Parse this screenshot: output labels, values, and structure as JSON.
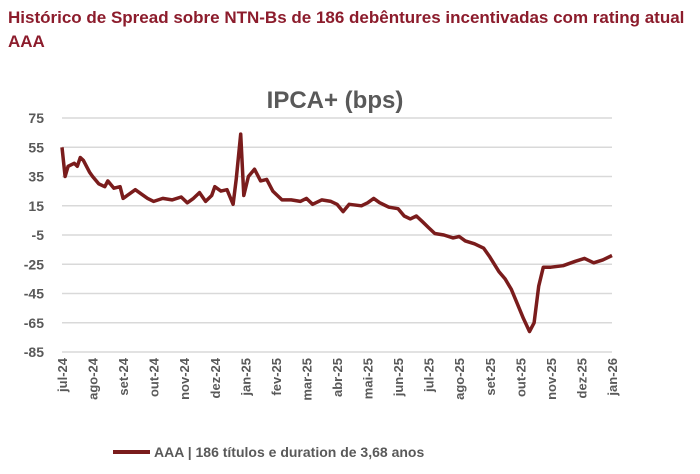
{
  "header": {
    "title": "Histórico de Spread sobre NTN-Bs  de 186 debêntures incentivadas com rating atual AAA"
  },
  "chart_data": {
    "type": "line",
    "title": "IPCA+ (bps)",
    "xlabel": "",
    "ylabel": "",
    "ylim": [
      -85,
      75
    ],
    "yticks": [
      75,
      55,
      35,
      15,
      -5,
      -25,
      -45,
      -65,
      -85
    ],
    "categories": [
      "jul-24",
      "ago-24",
      "set-24",
      "out-24",
      "nov-24",
      "dez-24",
      "jan-25",
      "fev-25",
      "mar-25",
      "abr-25",
      "mai-25",
      "jun-25",
      "jul-25",
      "ago-25",
      "set-25",
      "out-25",
      "nov-25",
      "dez-25",
      "jan-26"
    ],
    "grid": true,
    "legend_position": "bottom",
    "series": [
      {
        "name": "AAA | 186 títulos e duration de 3,68 anos",
        "color": "#7a1c1c",
        "x": [
          0,
          0.1,
          0.2,
          0.4,
          0.5,
          0.6,
          0.7,
          0.9,
          1.0,
          1.2,
          1.4,
          1.5,
          1.7,
          1.9,
          2.0,
          2.2,
          2.4,
          2.6,
          2.8,
          3.0,
          3.3,
          3.6,
          3.9,
          4.1,
          4.3,
          4.5,
          4.7,
          4.9,
          5.0,
          5.2,
          5.4,
          5.6,
          5.7,
          5.85,
          5.95,
          6.1,
          6.3,
          6.5,
          6.7,
          6.9,
          7.2,
          7.5,
          7.8,
          8.0,
          8.2,
          8.5,
          8.8,
          9.0,
          9.2,
          9.4,
          9.8,
          10.0,
          10.2,
          10.4,
          10.7,
          11.0,
          11.2,
          11.4,
          11.6,
          11.8,
          12.0,
          12.2,
          12.5,
          12.8,
          13.0,
          13.2,
          13.5,
          13.8,
          14.0,
          14.3,
          14.5,
          14.7,
          14.9,
          15.1,
          15.3,
          15.45,
          15.6,
          15.75,
          16.0,
          16.4,
          16.8,
          17.1,
          17.4,
          17.7,
          18.0
        ],
        "y": [
          55,
          35,
          42,
          44,
          42,
          48,
          46,
          38,
          35,
          30,
          28,
          32,
          27,
          28,
          20,
          23,
          26,
          23,
          20,
          18,
          20,
          19,
          21,
          17,
          20,
          24,
          18,
          22,
          28,
          25,
          26,
          16,
          33,
          64,
          22,
          35,
          40,
          32,
          33,
          25,
          19,
          19,
          18,
          20,
          16,
          19,
          18,
          16,
          11,
          16,
          15,
          17,
          20,
          17,
          14,
          13,
          8,
          6,
          8,
          4,
          0,
          -4,
          -5,
          -7,
          -6,
          -9,
          -11,
          -14,
          -20,
          -30,
          -35,
          -42,
          -52,
          -62,
          -71,
          -65,
          -40,
          -27,
          -27,
          -26,
          -23,
          -21,
          -24,
          -22,
          -19
        ]
      }
    ]
  }
}
